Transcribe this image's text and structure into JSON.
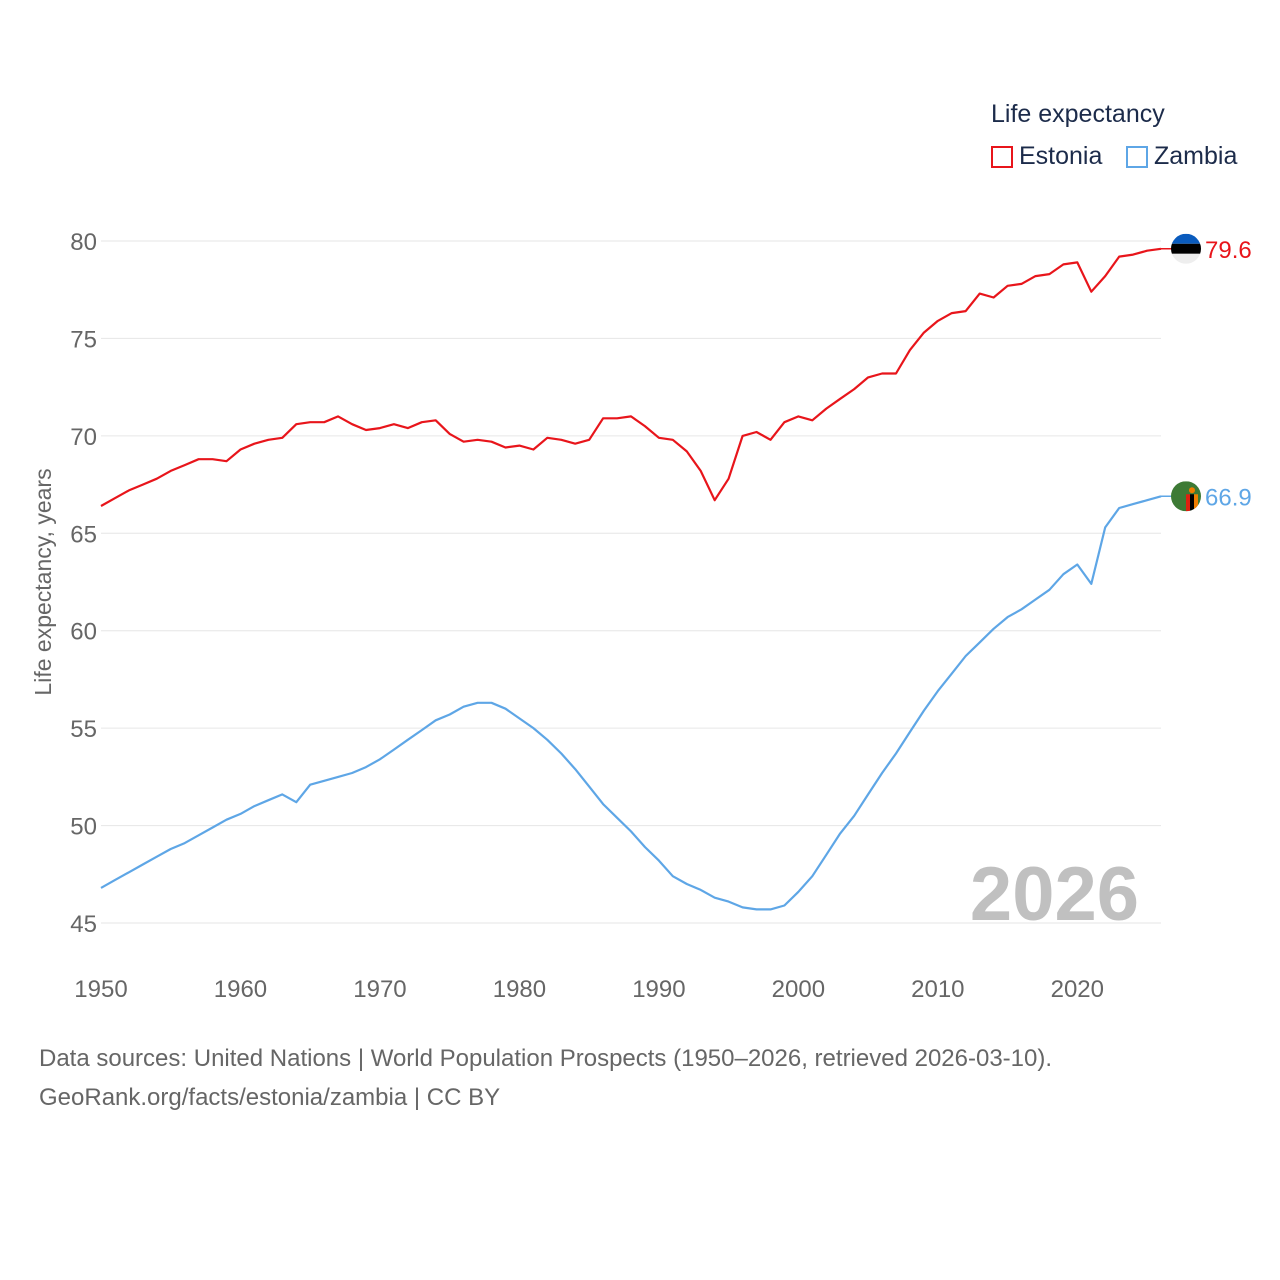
{
  "legend": {
    "title": "Life expectancy",
    "items": [
      {
        "label": "Estonia",
        "color": "#e8151b"
      },
      {
        "label": "Zambia",
        "color": "#5ea6e6"
      }
    ]
  },
  "footer": {
    "source_line": "Data sources: United Nations | World Population Prospects (1950–2026, retrieved 2026-03-10).",
    "url_line": "GeoRank.org/facts/estonia/zambia | CC BY"
  },
  "chart_data": {
    "type": "line",
    "title": "Life expectancy",
    "year_watermark": "2026",
    "xlabel": "",
    "ylabel": "Life expectancy, years",
    "xlim": [
      1950,
      2026
    ],
    "ylim": [
      45,
      80
    ],
    "x_ticks": [
      1950,
      1960,
      1970,
      1980,
      1990,
      2000,
      2010,
      2020
    ],
    "y_ticks": [
      45,
      50,
      55,
      60,
      65,
      70,
      75,
      80
    ],
    "grid": true,
    "legend_position": "top-right",
    "x": [
      1950,
      1951,
      1952,
      1953,
      1954,
      1955,
      1956,
      1957,
      1958,
      1959,
      1960,
      1961,
      1962,
      1963,
      1964,
      1965,
      1966,
      1967,
      1968,
      1969,
      1970,
      1971,
      1972,
      1973,
      1974,
      1975,
      1976,
      1977,
      1978,
      1979,
      1980,
      1981,
      1982,
      1983,
      1984,
      1985,
      1986,
      1987,
      1988,
      1989,
      1990,
      1991,
      1992,
      1993,
      1994,
      1995,
      1996,
      1997,
      1998,
      1999,
      2000,
      2001,
      2002,
      2003,
      2004,
      2005,
      2006,
      2007,
      2008,
      2009,
      2010,
      2011,
      2012,
      2013,
      2014,
      2015,
      2016,
      2017,
      2018,
      2019,
      2020,
      2021,
      2022,
      2023,
      2024,
      2025,
      2026
    ],
    "series": [
      {
        "name": "Estonia",
        "color": "#e8151b",
        "end_label": "79.6",
        "values": [
          66.4,
          66.8,
          67.2,
          67.5,
          67.8,
          68.2,
          68.5,
          68.8,
          68.8,
          68.7,
          69.3,
          69.6,
          69.8,
          69.9,
          70.6,
          70.7,
          70.7,
          71.0,
          70.6,
          70.3,
          70.4,
          70.6,
          70.4,
          70.7,
          70.8,
          70.1,
          69.7,
          69.8,
          69.7,
          69.4,
          69.5,
          69.3,
          69.9,
          69.8,
          69.6,
          69.8,
          70.9,
          70.9,
          71.0,
          70.5,
          69.9,
          69.8,
          69.2,
          68.2,
          66.7,
          67.8,
          70.0,
          70.2,
          69.8,
          70.7,
          71.0,
          70.8,
          71.4,
          71.9,
          72.4,
          73.0,
          73.2,
          73.2,
          74.4,
          75.3,
          75.9,
          76.3,
          76.4,
          77.3,
          77.1,
          77.7,
          77.8,
          78.2,
          78.3,
          78.8,
          78.9,
          77.4,
          78.2,
          79.2,
          79.3,
          79.5,
          79.6
        ]
      },
      {
        "name": "Zambia",
        "color": "#5ea6e6",
        "end_label": "66.9",
        "values": [
          46.8,
          47.2,
          47.6,
          48.0,
          48.4,
          48.8,
          49.1,
          49.5,
          49.9,
          50.3,
          50.6,
          51.0,
          51.3,
          51.6,
          51.2,
          52.1,
          52.3,
          52.5,
          52.7,
          53.0,
          53.4,
          53.9,
          54.4,
          54.9,
          55.4,
          55.7,
          56.1,
          56.3,
          56.3,
          56.0,
          55.5,
          55.0,
          54.4,
          53.7,
          52.9,
          52.0,
          51.1,
          50.4,
          49.7,
          48.9,
          48.2,
          47.4,
          47.0,
          46.7,
          46.3,
          46.1,
          45.8,
          45.7,
          45.7,
          45.9,
          46.6,
          47.4,
          48.5,
          49.6,
          50.5,
          51.6,
          52.7,
          53.7,
          54.8,
          55.9,
          56.9,
          57.8,
          58.7,
          59.4,
          60.1,
          60.7,
          61.1,
          61.6,
          62.1,
          62.9,
          63.4,
          62.4,
          65.3,
          66.3,
          66.5,
          66.7,
          66.9
        ]
      }
    ]
  }
}
